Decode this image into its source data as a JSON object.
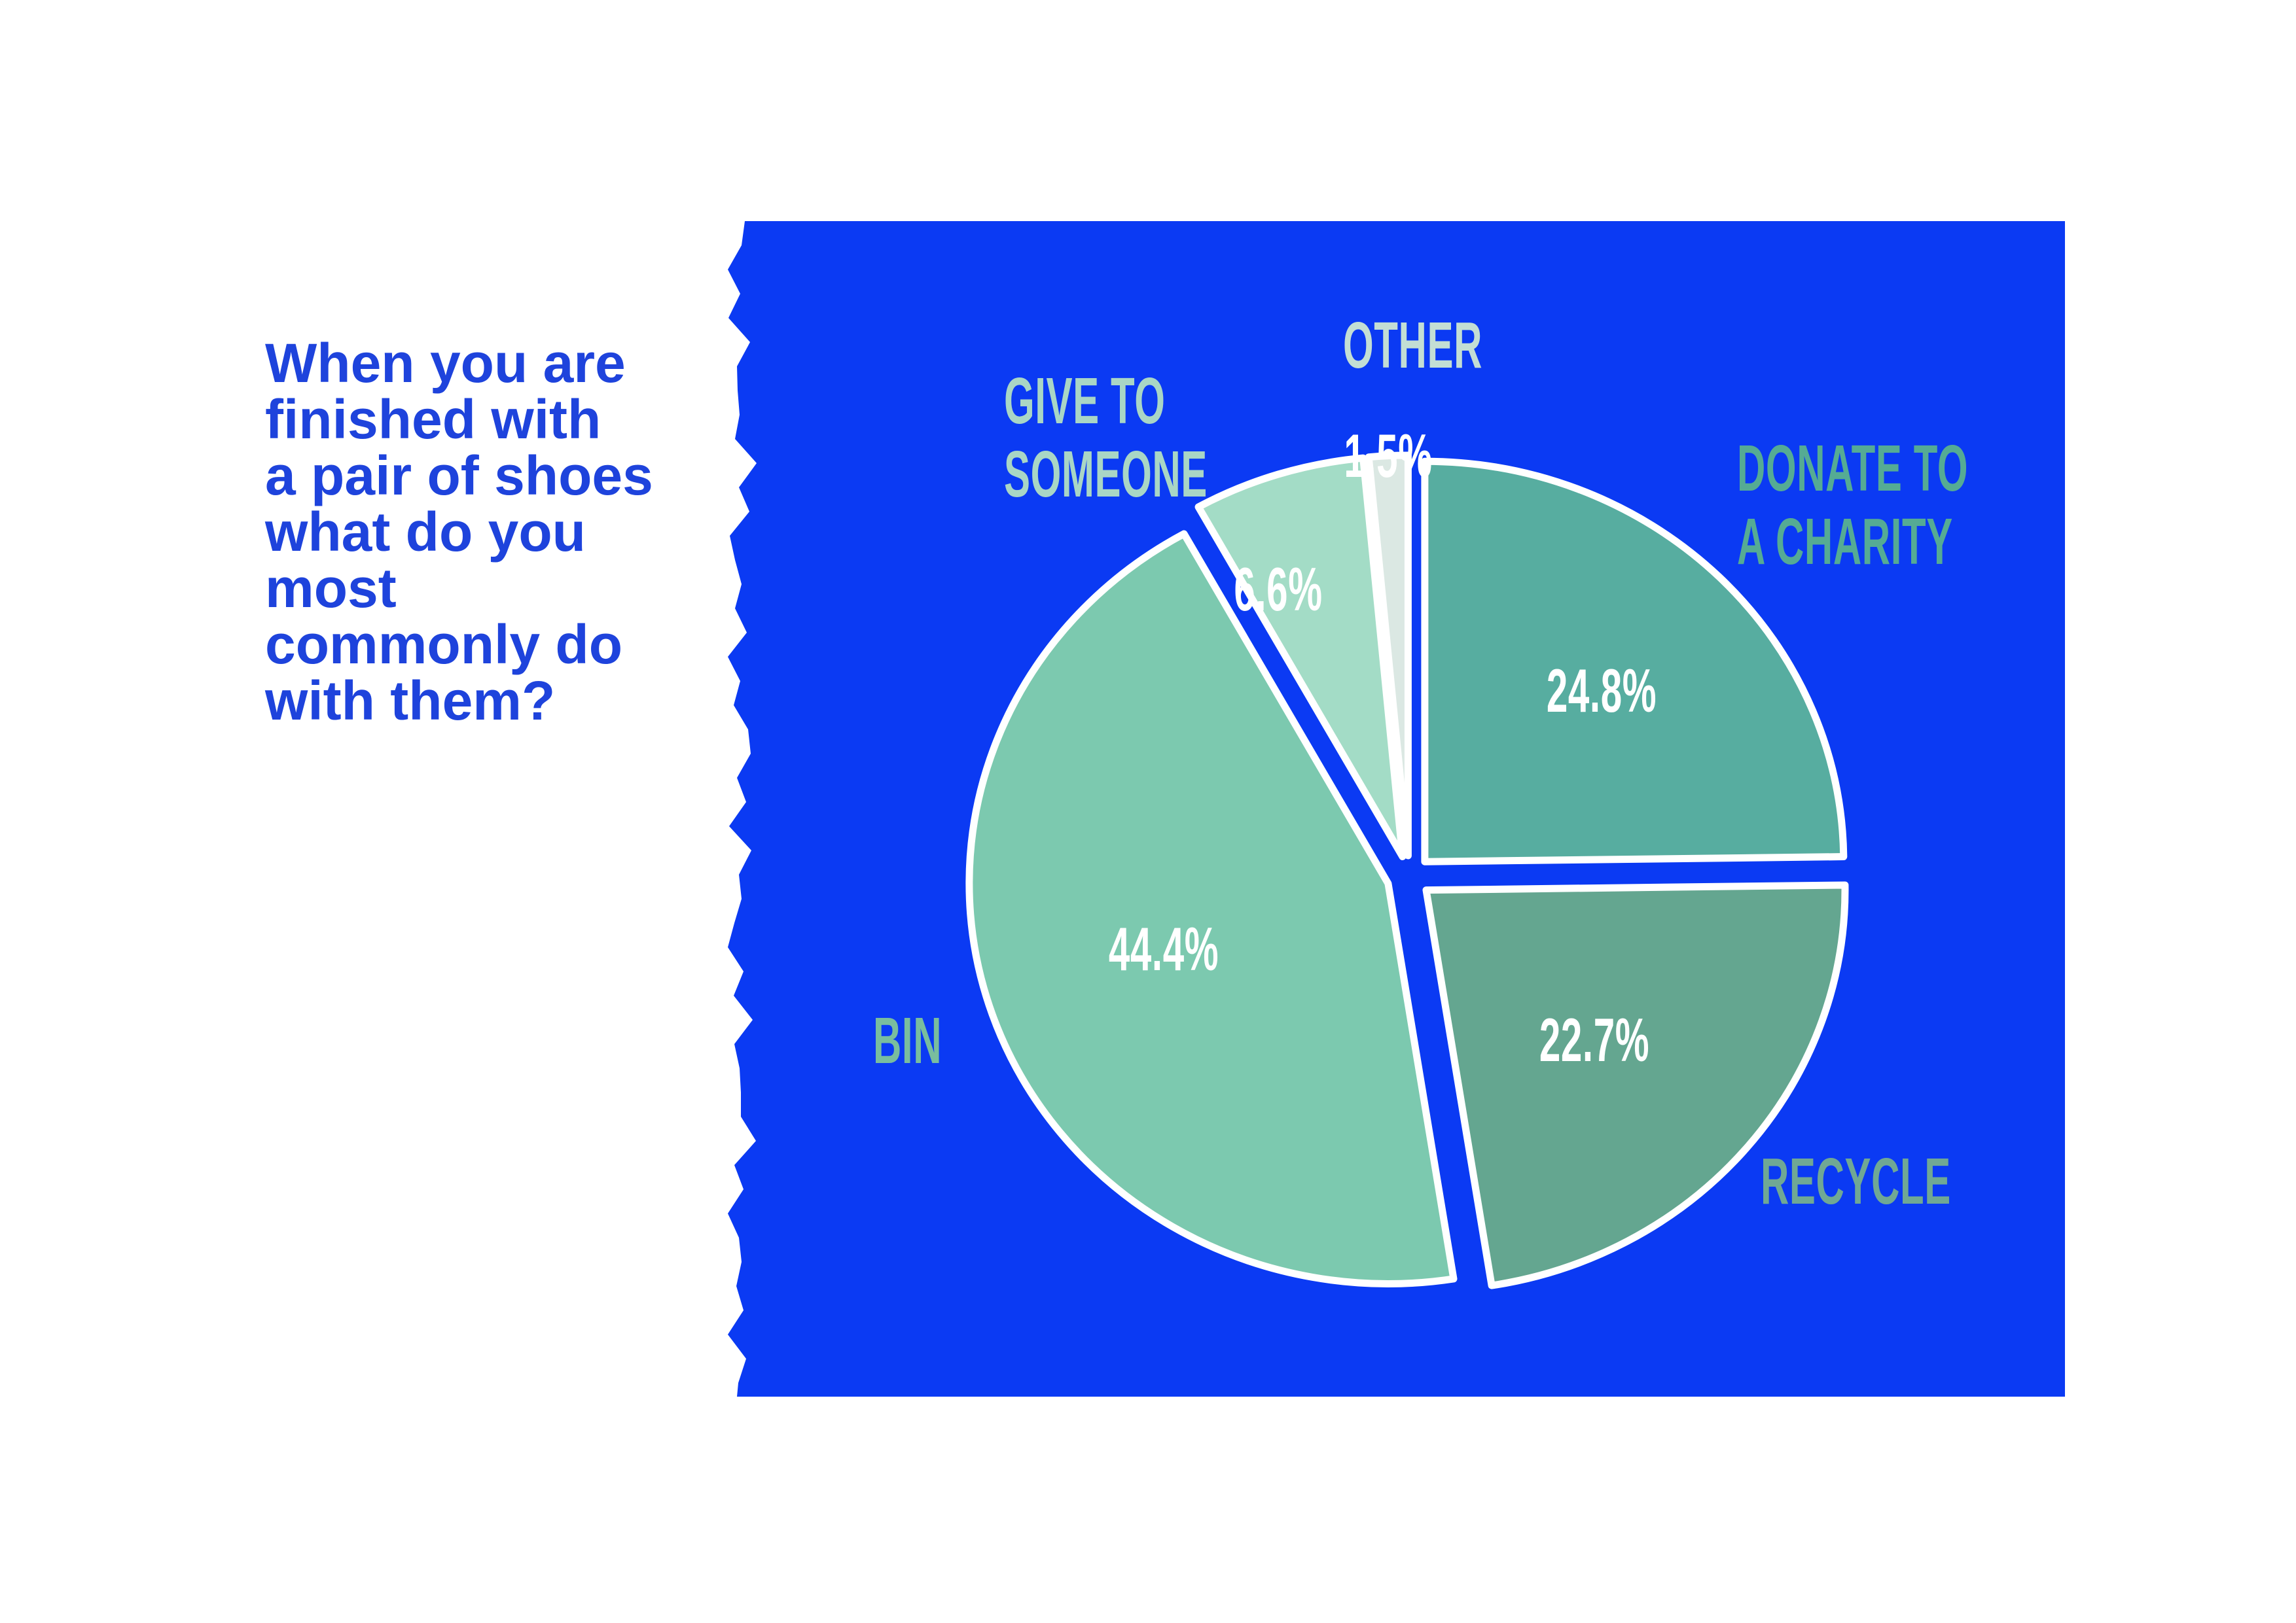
{
  "question": {
    "lines": [
      "When you are",
      "finished with",
      "a pair of shoes",
      "what do you",
      "most",
      "commonly do",
      "with them?"
    ],
    "color": "#1e43dc"
  },
  "panel": {
    "color": "#0b3af3",
    "edge_style": "torn-paper-left-edge"
  },
  "chart_data": {
    "type": "pie",
    "title": "When you are finished with a pair of shoes what do you most commonly do with them?",
    "categories": [
      "Donate to a charity",
      "Recycle",
      "Bin",
      "Give to someone",
      "Other"
    ],
    "values": [
      24.8,
      22.7,
      44.4,
      6.6,
      1.5
    ],
    "unit": "%",
    "direction": "clockwise",
    "start_angle_deg": 0,
    "exploded": true,
    "slice_colors": [
      "#57ada0",
      "#64a690",
      "#7cc9af",
      "#a3dcc6",
      "#dbe8e3"
    ],
    "slice_stroke": "#ffffff",
    "value_labels": [
      "24.8%",
      "22.7%",
      "44.4%",
      "6.6%",
      "1.5%"
    ],
    "value_label_color": "#ffffff",
    "legend_position": "around"
  },
  "callouts": {
    "donate": {
      "lines": [
        "DONATE TO",
        "A CHARITY"
      ],
      "color": "#55ab94"
    },
    "recycle": {
      "lines": [
        "RECYCLE"
      ],
      "color": "#70a894"
    },
    "bin": {
      "lines": [
        "BIN"
      ],
      "color": "#79bd9e"
    },
    "give": {
      "lines": [
        "GIVE TO",
        "SOMEONE"
      ],
      "color": "#a9d6c5"
    },
    "other": {
      "lines": [
        "OTHER"
      ],
      "color": "#c3ded4"
    }
  }
}
